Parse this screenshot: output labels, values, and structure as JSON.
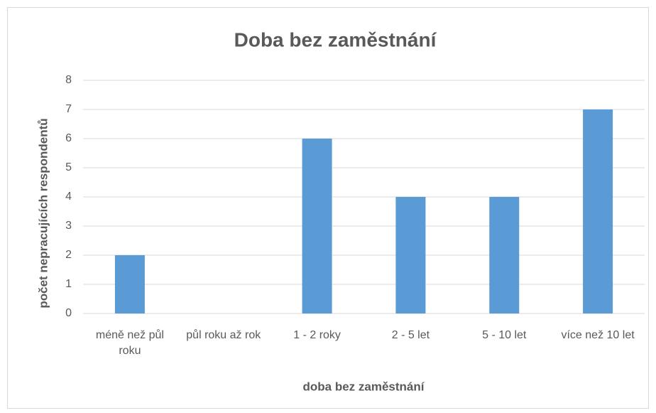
{
  "chart_data": {
    "type": "bar",
    "title": "Doba bez zaměstnání",
    "x_label": "doba bez zaměstnání",
    "y_label": "počet nepracujících respondentů",
    "categories": [
      "méně než půl roku",
      "půl roku až rok",
      "1 - 2 roky",
      "2 - 5 let",
      "5 - 10 let",
      "více než 10 let"
    ],
    "values": [
      2,
      0,
      6,
      4,
      4,
      7
    ],
    "color": "#5b9bd5",
    "ylim": [
      0,
      8
    ],
    "yticks": [
      0,
      1,
      2,
      3,
      4,
      5,
      6,
      7,
      8
    ],
    "grid": true
  }
}
